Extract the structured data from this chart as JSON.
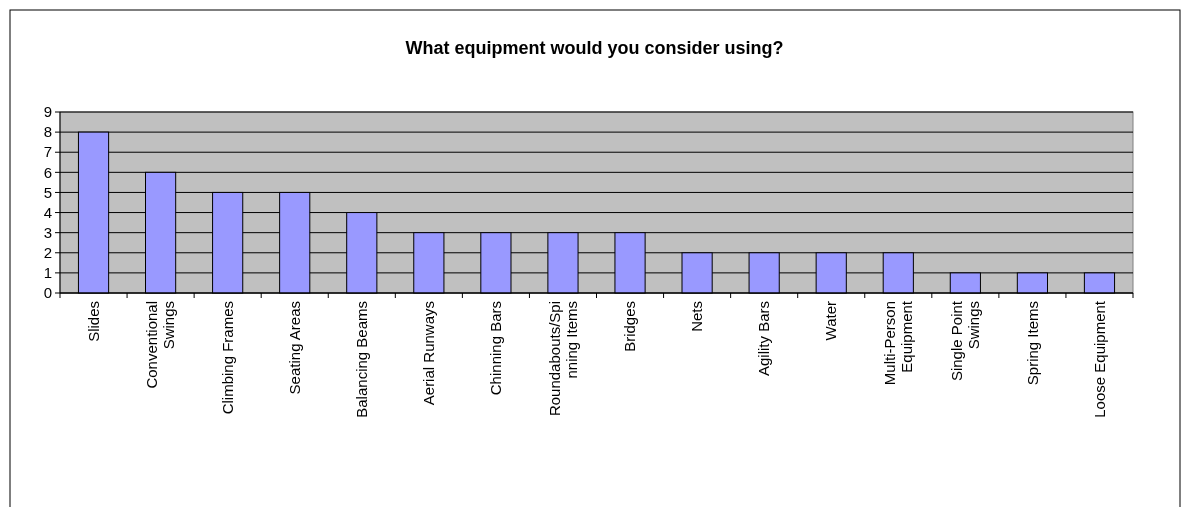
{
  "chart_data": {
    "type": "bar",
    "title": "What equipment would you consider using?",
    "categories": [
      "Slides",
      "Conventional Swings",
      "Climbing Frames",
      "Seating Areas",
      "Balancing Beams",
      "Aerial Runways",
      "Chinning Bars",
      "Roundabouts/Spinning Items",
      "Bridges",
      "Nets",
      "Agility Bars",
      "Water",
      "Multi-Person Equipment",
      "Single Point Swings",
      "Spring Items",
      "Loose Equipment"
    ],
    "values": [
      8,
      6,
      5,
      5,
      4,
      3,
      3,
      3,
      3,
      2,
      2,
      2,
      2,
      1,
      1,
      1
    ],
    "color": "#9999ff",
    "ylim": [
      0,
      9
    ],
    "yticks": [
      0,
      1,
      2,
      3,
      4,
      5,
      6,
      7,
      8,
      9
    ],
    "grid": "y"
  }
}
